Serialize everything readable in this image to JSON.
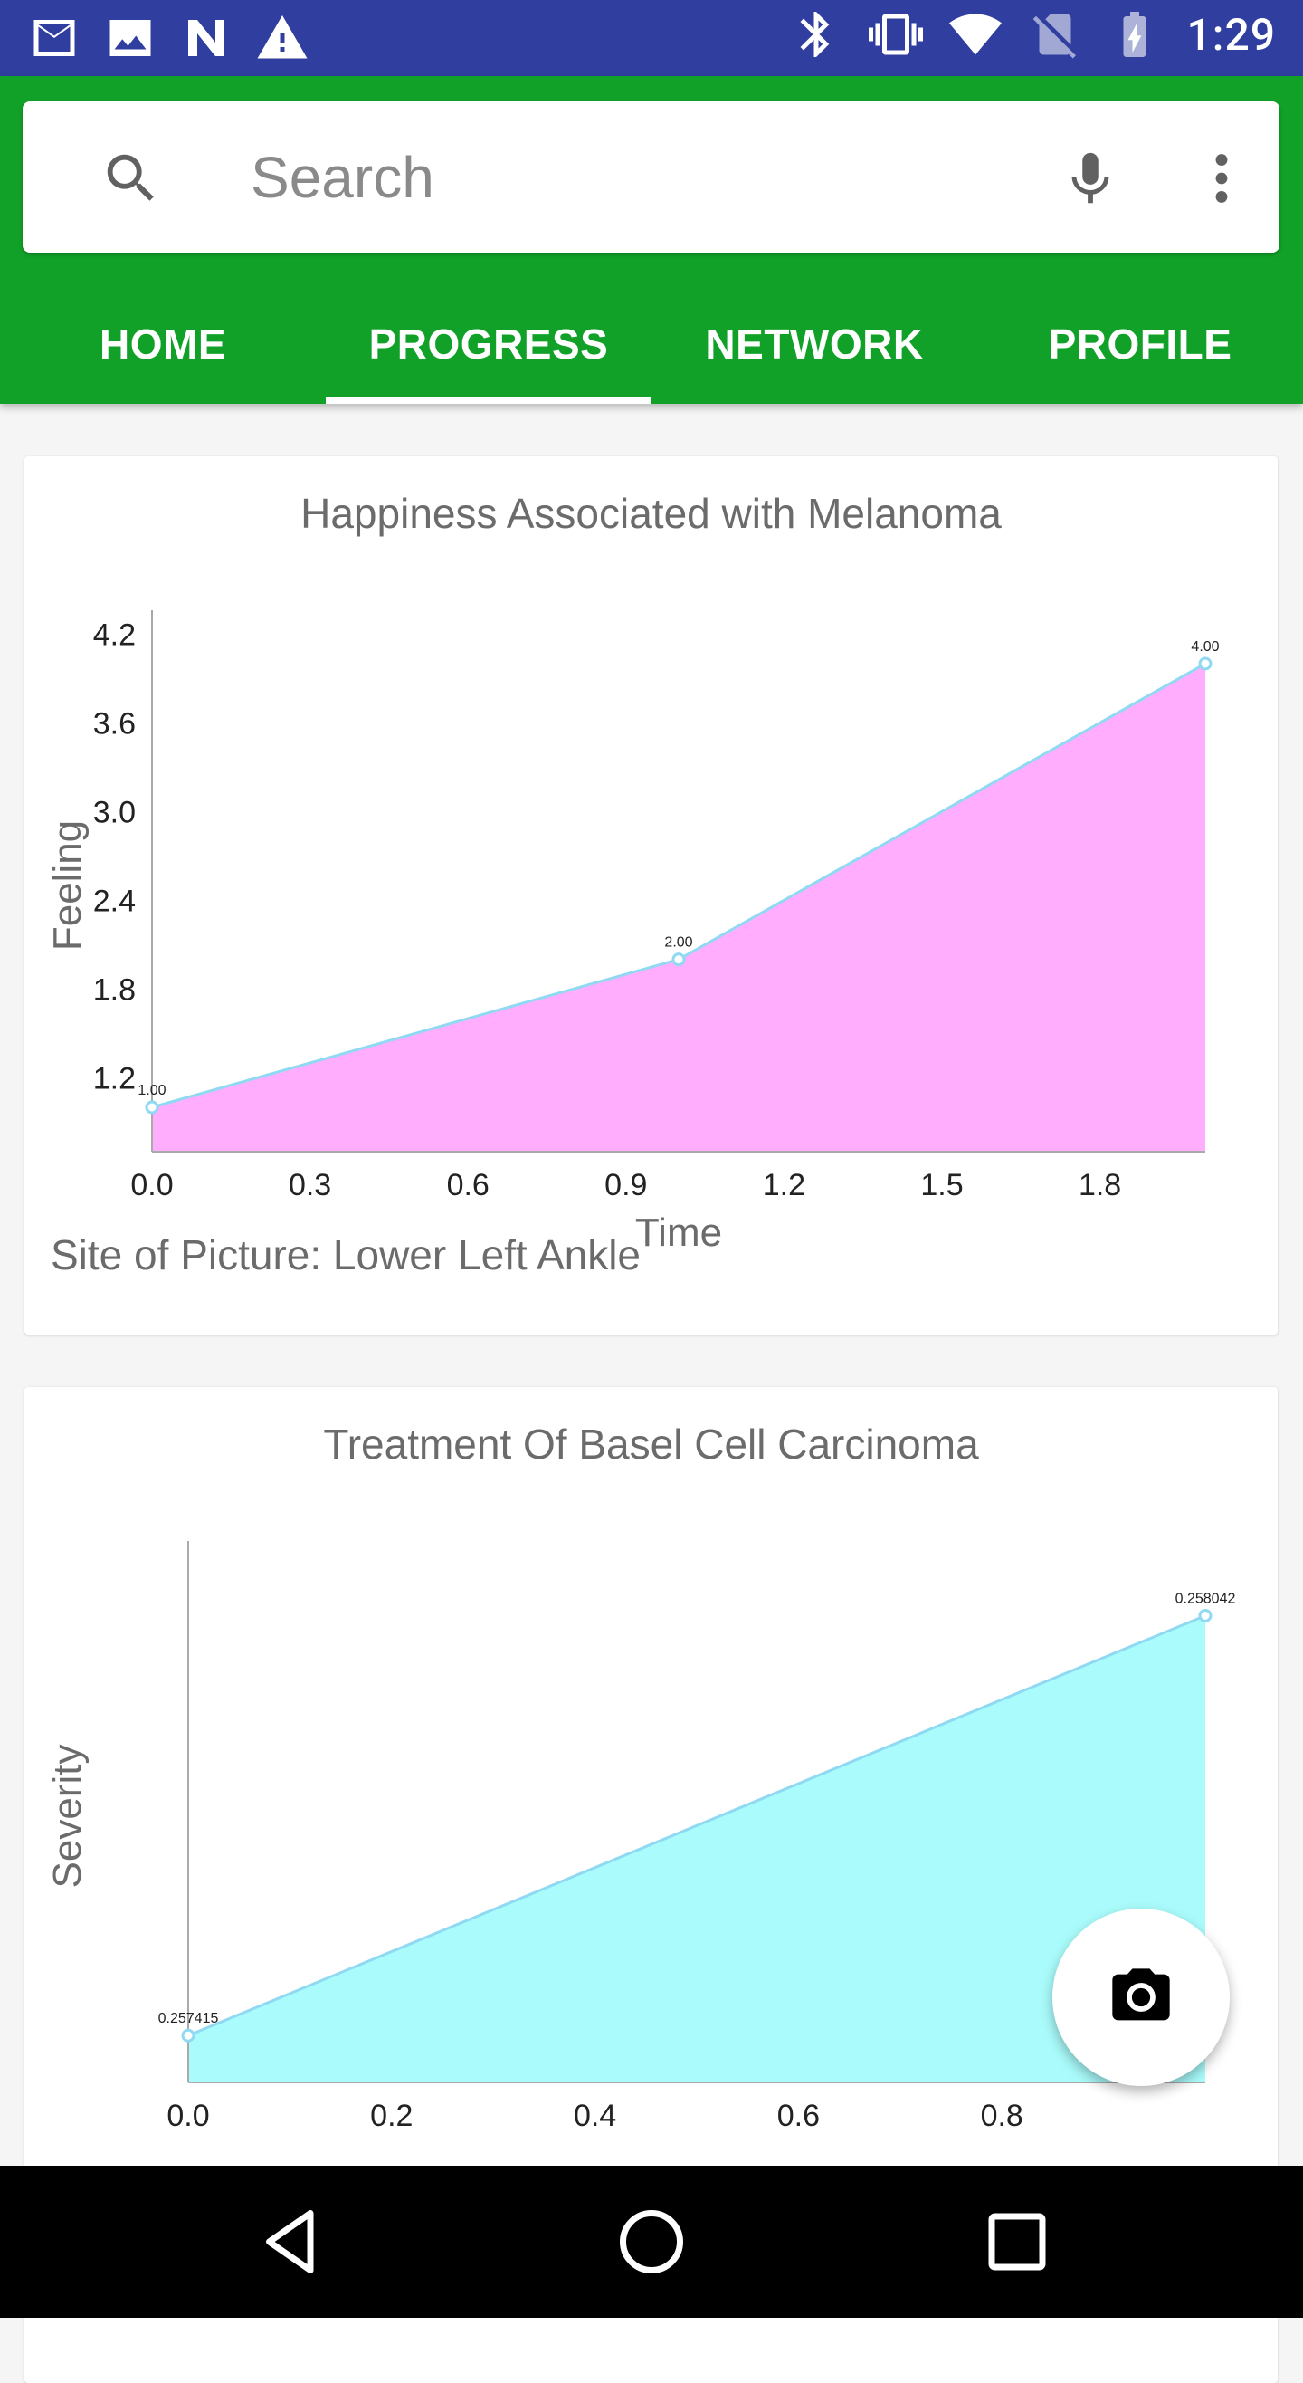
{
  "status_bar": {
    "time": "1:29",
    "left_icons": [
      "gmail-icon",
      "image-icon",
      "n-icon",
      "warning-icon"
    ],
    "right_icons": [
      "bluetooth-icon",
      "vibrate-icon",
      "wifi-icon",
      "no-sim-icon",
      "battery-charging-icon"
    ]
  },
  "search": {
    "placeholder": "Search",
    "value": ""
  },
  "tabs": [
    {
      "label": "HOME",
      "active": false
    },
    {
      "label": "PROGRESS",
      "active": true
    },
    {
      "label": "NETWORK",
      "active": false
    },
    {
      "label": "PROFILE",
      "active": false
    }
  ],
  "cards": [
    {
      "title": "Happiness Associated with Melanoma",
      "caption": "Site of Picture: Lower Left Ankle"
    },
    {
      "title": "Treatment Of Basel Cell Carcinoma"
    }
  ],
  "colors": {
    "status_bar": "#303f9f",
    "app_bar": "#11a128",
    "chart1_fill": "#ffadfc",
    "chart2_fill": "#aafcfc",
    "line": "#8fd9f2"
  },
  "chart_data": [
    {
      "type": "area",
      "title": "Happiness Associated with Melanoma",
      "xlabel": "Time",
      "ylabel": "Feeling",
      "x": [
        0,
        1,
        2
      ],
      "series": [
        {
          "values": [
            1.0,
            2.0,
            4.0
          ],
          "labels": [
            "1.00",
            "2.00",
            "4.00"
          ]
        }
      ],
      "xticks": [
        "0.0",
        "0.3",
        "0.6",
        "0.9",
        "1.2",
        "1.5",
        "1.8"
      ],
      "yticks": [
        "1.2",
        "1.8",
        "2.4",
        "3.0",
        "3.6",
        "4.2"
      ],
      "xlim": [
        0,
        2
      ],
      "ylim": [
        0.7,
        4.3
      ],
      "grid": false
    },
    {
      "type": "area",
      "title": "Treatment Of Basel Cell Carcinoma",
      "xlabel": "",
      "ylabel": "Severity",
      "x": [
        0,
        1
      ],
      "series": [
        {
          "values": [
            0.257415,
            0.258042
          ],
          "labels": [
            "0.257415",
            "0.258042"
          ]
        }
      ],
      "xticks": [
        "0.0",
        "0.2",
        "0.4",
        "0.6",
        "0.8"
      ],
      "yticks": [],
      "xlim": [
        0,
        1
      ],
      "grid": false
    }
  ]
}
